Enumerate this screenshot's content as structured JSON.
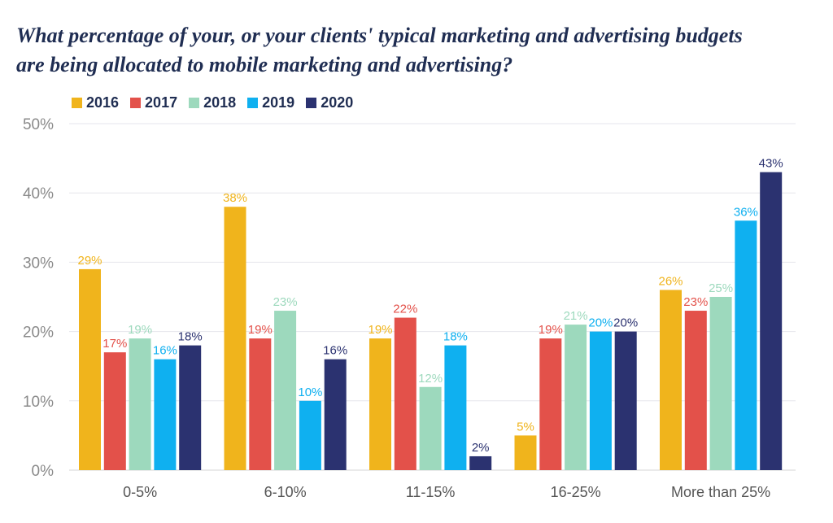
{
  "chart_data": {
    "type": "bar",
    "title_lines": [
      "What percentage of your, or your clients' typical marketing and advertising budgets",
      "are being allocated to mobile marketing and advertising?"
    ],
    "categories": [
      "0-5%",
      "6-10%",
      "11-15%",
      "16-25%",
      "More than 25%"
    ],
    "series": [
      {
        "name": "2016",
        "color": "#f0b41c",
        "values": [
          29,
          38,
          19,
          5,
          26
        ]
      },
      {
        "name": "2017",
        "color": "#e3514a",
        "values": [
          17,
          19,
          22,
          19,
          23
        ]
      },
      {
        "name": "2018",
        "color": "#9dd9bd",
        "values": [
          19,
          23,
          12,
          21,
          25
        ]
      },
      {
        "name": "2019",
        "color": "#0fb0f0",
        "values": [
          16,
          10,
          18,
          20,
          36
        ]
      },
      {
        "name": "2020",
        "color": "#2b3270",
        "values": [
          18,
          16,
          2,
          20,
          43
        ]
      }
    ],
    "y_ticks": [
      "0%",
      "10%",
      "20%",
      "30%",
      "40%",
      "50%"
    ],
    "ylim": [
      0,
      50
    ],
    "value_suffix": "%",
    "legend_position": "top-left",
    "grid": true
  }
}
